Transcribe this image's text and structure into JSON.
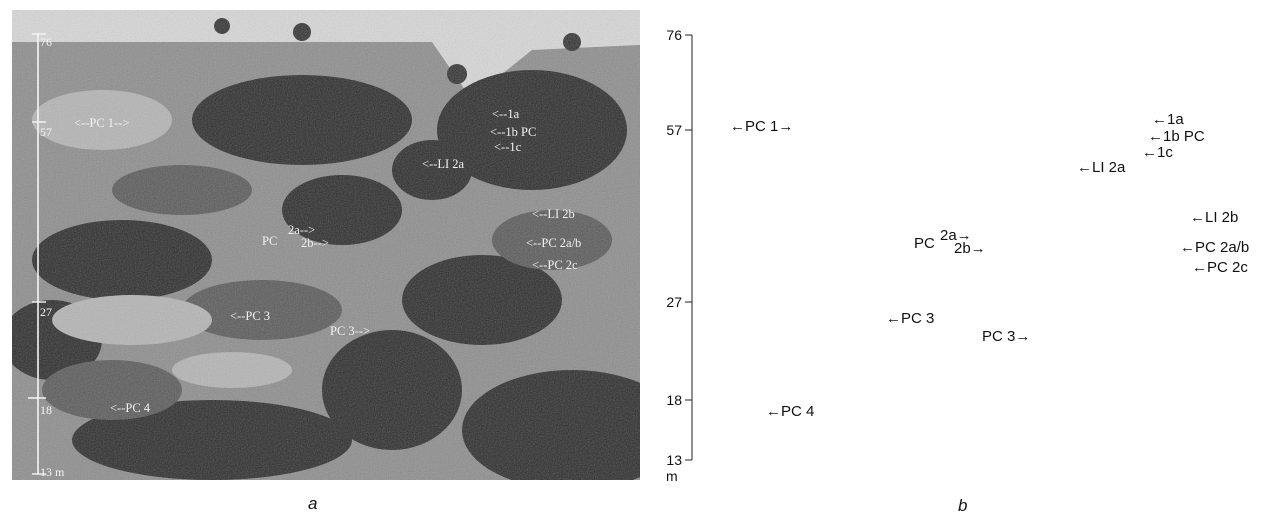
{
  "photo": {
    "scale_ticks": [
      "76",
      "57",
      "27",
      "18",
      "13 m"
    ],
    "labels": [
      "<--PC 1-->",
      "<--1a",
      "<--1b  PC",
      "<--1c",
      "<--LI 2a",
      "<--LI 2b",
      "PC",
      "2a-->",
      "2b-->",
      "<--PC 2a/b",
      "<--PC 2c",
      "<--PC 3",
      "PC 3-->",
      "<--PC 4"
    ]
  },
  "diagram": {
    "axis_ticks": [
      "76",
      "57",
      "27",
      "18",
      "13"
    ],
    "axis_unit": "m",
    "labels": [
      "←PC 1→",
      "←1a",
      "←1b PC",
      "←1c",
      "←LI 2a",
      "←LI 2b",
      "PC",
      "2a→",
      "2b→",
      "←PC 2a/b",
      "←PC 2c",
      "←PC 3",
      "PC 3→",
      "←PC 4"
    ]
  },
  "captions": {
    "left": "a",
    "right": "b"
  }
}
